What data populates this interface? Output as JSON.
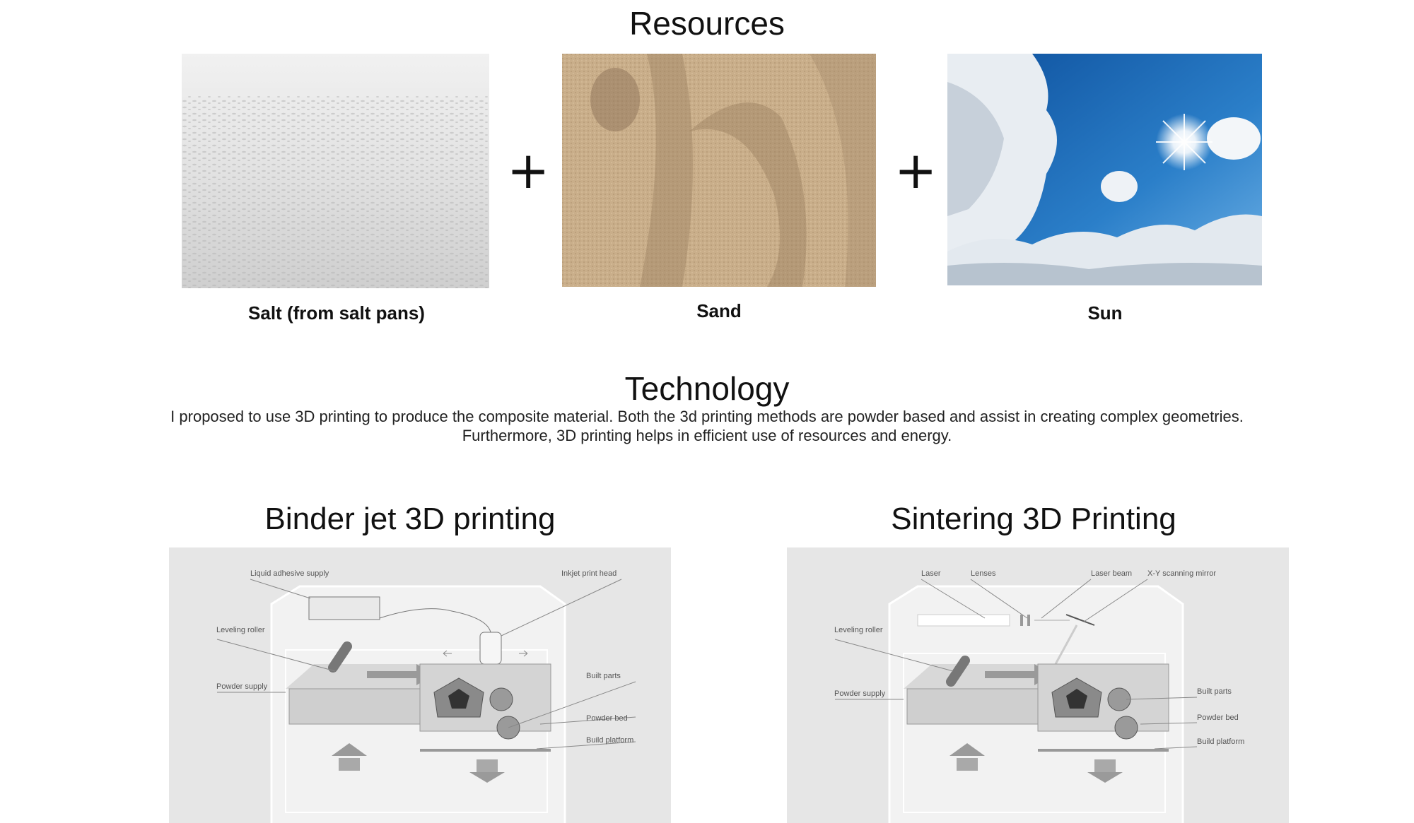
{
  "resources": {
    "title": "Resources",
    "items": [
      {
        "caption": "Salt (from salt pans)",
        "image": "salt-flat-photo"
      },
      {
        "caption": "Sand",
        "image": "sand-photo"
      },
      {
        "caption": "Sun",
        "image": "sky-sun-photo"
      }
    ],
    "plus": "+"
  },
  "technology": {
    "title": "Technology",
    "description": "I proposed to use 3D printing to produce the composite material. Both the 3d printing methods are powder based and assist in creating complex geometries. Furthermore, 3D printing helps in efficient use of resources and energy."
  },
  "binder_jet": {
    "title": "Binder jet 3D printing",
    "labels": {
      "adhesive": "Liquid adhesive supply",
      "print_head": "Inkjet print head",
      "roller": "Leveling roller",
      "powder_supply": "Powder supply",
      "built_parts": "Built parts",
      "powder_bed": "Powder bed",
      "platform": "Build platform"
    }
  },
  "sintering": {
    "title": "Sintering 3D Printing",
    "labels": {
      "laser": "Laser",
      "lenses": "Lenses",
      "laser_beam": "Laser beam",
      "mirror": "X-Y scanning mirror",
      "roller": "Leveling roller",
      "powder_supply": "Powder supply",
      "built_parts": "Built parts",
      "powder_bed": "Powder bed",
      "platform": "Build platform"
    }
  }
}
